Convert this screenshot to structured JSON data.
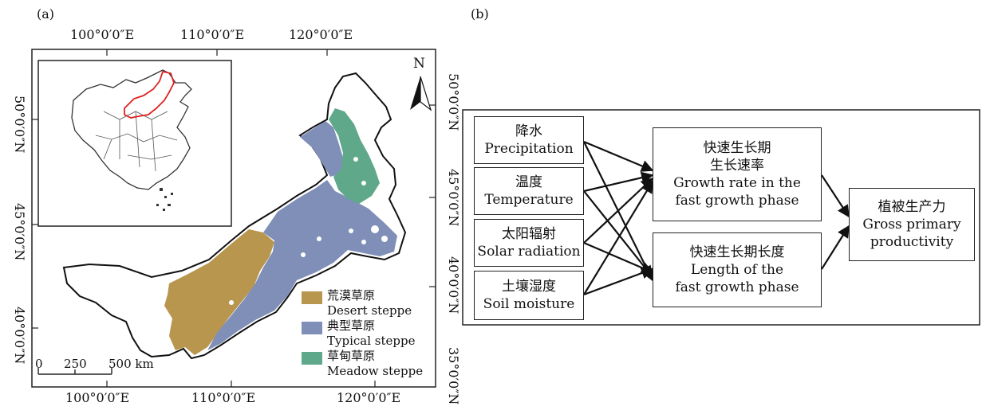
{
  "panel_a": {
    "label": "(a)",
    "top_longitudes": [
      "100°0′0″E",
      "110°0′0″E",
      "120°0′0″E"
    ],
    "bottom_longitudes": [
      "100°0′0″E",
      "110°0′0″E",
      "120°0′0″E"
    ],
    "left_latitudes": [
      "50°0′0″N",
      "45°0′0″N",
      "40°0′0″N"
    ],
    "right_latitudes": [
      "50°0′0″N",
      "45°0′0″N",
      "40°0′0″N",
      "35°0′0″N"
    ],
    "north_label": "N",
    "scale_bar": {
      "ticks": [
        "0",
        "250",
        "500 km"
      ]
    },
    "legend": [
      {
        "cn": "荒漠草原",
        "en": "Desert steppe",
        "color": "#b8964e"
      },
      {
        "cn": "典型草原",
        "en": "Typical steppe",
        "color": "#7f8fb8"
      },
      {
        "cn": "草甸草原",
        "en": "Meadow steppe",
        "color": "#5fa88a"
      }
    ],
    "colors": {
      "outline": "#111111",
      "inset_highlight": "#e02020"
    }
  },
  "panel_b": {
    "label": "(b)",
    "drivers": [
      {
        "cn": "降水",
        "en": "Precipitation"
      },
      {
        "cn": "温度",
        "en": "Temperature"
      },
      {
        "cn": "太阳辐射",
        "en": "Solar radiation"
      },
      {
        "cn": "土壤湿度",
        "en": "Soil moisture"
      }
    ],
    "middle": [
      {
        "lines": [
          "快速生长期",
          "生长速率",
          "Growth rate in the",
          "fast growth phase"
        ]
      },
      {
        "lines": [
          "快速生长期长度",
          "Length of the",
          "fast growth phase"
        ]
      }
    ],
    "output": {
      "lines": [
        "植被生产力",
        "Gross primary",
        "productivity"
      ]
    }
  }
}
